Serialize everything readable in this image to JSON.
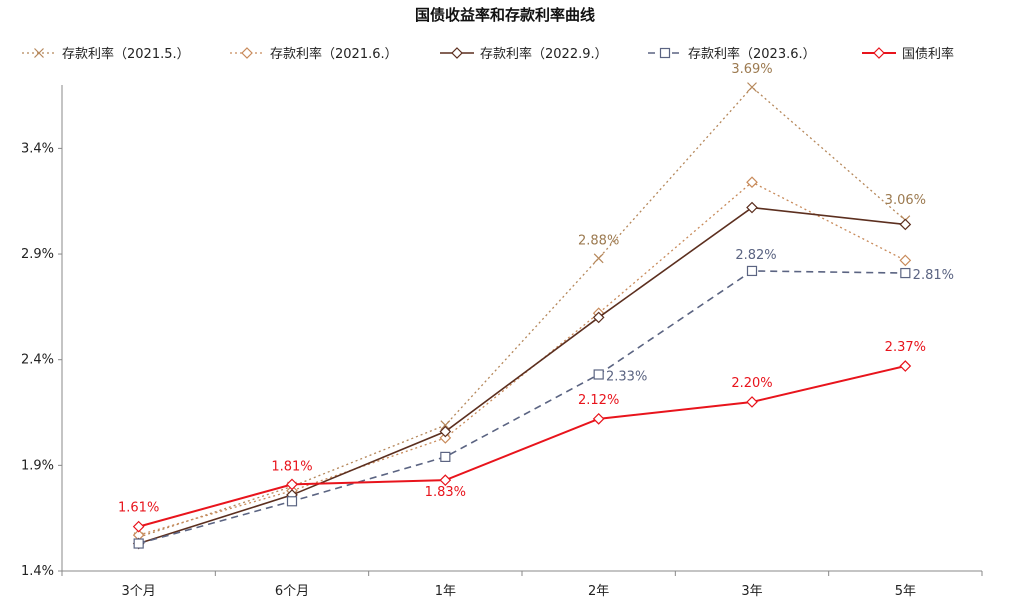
{
  "chart_data": {
    "type": "line",
    "title": "国债收益率和存款利率曲线",
    "xlabel": "",
    "ylabel": "",
    "categories": [
      "3个月",
      "6个月",
      "1年",
      "2年",
      "3年",
      "5年"
    ],
    "ylim": [
      1.4,
      3.7
    ],
    "yticks": [
      "1.4%",
      "1.9%",
      "2.4%",
      "2.9%",
      "3.4%"
    ],
    "ytick_values": [
      1.4,
      1.9,
      2.4,
      2.9,
      3.4
    ],
    "grid": false,
    "legend_position": "top",
    "series": [
      {
        "name": "存款利率（2021.5.）",
        "values": [
          1.56,
          1.8,
          2.09,
          2.88,
          3.69,
          3.06
        ],
        "labels": [
          "",
          "",
          "",
          "2.88%",
          "3.69%",
          "3.06%"
        ],
        "color": "#b5875a",
        "label_color": "#9c7a50",
        "dash": "2,3",
        "width": 1.3,
        "marker": "x"
      },
      {
        "name": "存款利率（2021.6.）",
        "values": [
          1.57,
          1.78,
          2.03,
          2.62,
          3.24,
          2.87
        ],
        "labels": [
          "",
          "",
          "",
          "",
          "",
          ""
        ],
        "color": "#c88a5a",
        "label_color": "#c88a5a",
        "dash": "2,3",
        "width": 1.3,
        "marker": "diamond"
      },
      {
        "name": "存款利率（2022.9.）",
        "values": [
          1.53,
          1.76,
          2.06,
          2.6,
          3.12,
          3.04
        ],
        "labels": [
          "",
          "",
          "",
          "",
          "",
          ""
        ],
        "color": "#5c2f1f",
        "label_color": "#5c2f1f",
        "dash": "",
        "width": 1.6,
        "marker": "diamond"
      },
      {
        "name": "存款利率（2023.6.）",
        "values": [
          1.53,
          1.73,
          1.94,
          2.33,
          2.82,
          2.81
        ],
        "labels": [
          "",
          "",
          "",
          "2.33%",
          "2.82%",
          "2.81%"
        ],
        "color": "#5b6482",
        "label_color": "#5b6482",
        "dash": "7,5",
        "width": 1.6,
        "marker": "square"
      },
      {
        "name": "国债利率",
        "values": [
          1.61,
          1.81,
          1.83,
          2.12,
          2.2,
          2.37
        ],
        "labels": [
          "1.61%",
          "1.81%",
          "1.83%",
          "2.12%",
          "2.20%",
          "2.37%"
        ],
        "color": "#e8141c",
        "label_color": "#e8141c",
        "dash": "",
        "width": 2.0,
        "marker": "diamond"
      }
    ]
  }
}
